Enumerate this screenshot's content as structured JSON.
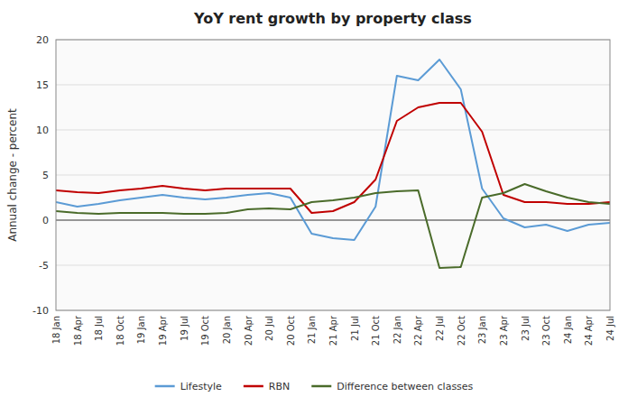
{
  "chart_data": {
    "type": "line",
    "title": "YoY rent growth by property class",
    "y_label": "Annual change - percent",
    "categories": [
      "18 Jan",
      "18 Apr",
      "18 Jul",
      "18 Oct",
      "19 Jan",
      "19 Apr",
      "19 Jul",
      "19 Oct",
      "20 Jan",
      "20 Apr",
      "20 Jul",
      "20 Oct",
      "21 Jan",
      "21 Apr",
      "21 Jul",
      "21 Oct",
      "22 Jan",
      "22 Apr",
      "22 Jul",
      "22 Oct",
      "23 Jan",
      "23 Apr",
      "23 Jul",
      "23 Oct",
      "24 Jan",
      "24 Apr",
      "24 Jul"
    ],
    "series": [
      {
        "name": "Lifestyle",
        "color": "#5B9BD5",
        "values": [
          2.0,
          1.5,
          1.8,
          2.2,
          2.5,
          2.8,
          2.5,
          2.3,
          2.5,
          2.8,
          3.0,
          2.5,
          -1.5,
          -2.0,
          -2.2,
          1.5,
          16.0,
          15.5,
          17.8,
          14.5,
          3.5,
          0.2,
          -0.8,
          -0.5,
          -1.2,
          -0.5,
          -0.3
        ]
      },
      {
        "name": "RBN",
        "color": "#C00000",
        "values": [
          3.3,
          3.1,
          3.0,
          3.3,
          3.5,
          3.8,
          3.5,
          3.3,
          3.5,
          3.5,
          3.5,
          3.5,
          0.8,
          1.0,
          2.0,
          4.5,
          11.0,
          12.5,
          13.0,
          13.0,
          9.8,
          2.8,
          2.0,
          2.0,
          1.8,
          1.8,
          2.0
        ]
      },
      {
        "name": "Difference between classes",
        "color": "#4a6b2a",
        "values": [
          1.0,
          0.8,
          0.7,
          0.8,
          0.8,
          0.8,
          0.7,
          0.7,
          0.8,
          1.2,
          1.3,
          1.2,
          2.0,
          2.2,
          2.5,
          3.0,
          3.2,
          3.3,
          -5.3,
          -5.2,
          2.5,
          3.0,
          4.0,
          3.2,
          2.5,
          2.0,
          1.8
        ]
      }
    ],
    "ylim": [
      -10,
      20
    ],
    "yticks": [
      -10,
      -5,
      0,
      5,
      10,
      15,
      20
    ],
    "grid": true,
    "legend": "bottom"
  }
}
